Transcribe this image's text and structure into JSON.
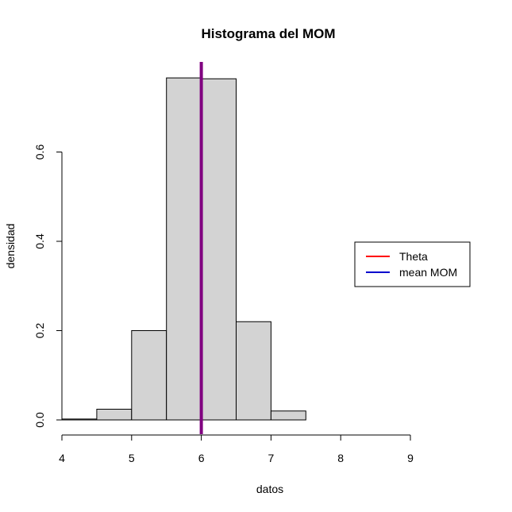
{
  "chart_data": {
    "type": "bar",
    "title": "Histograma del MOM",
    "xlabel": "datos",
    "ylabel": "densidad",
    "xlim": [
      4,
      9
    ],
    "ylim": [
      0,
      0.8
    ],
    "x_ticks": [
      4,
      5,
      6,
      7,
      8,
      9
    ],
    "y_ticks": [
      0.0,
      0.2,
      0.4,
      0.6
    ],
    "y_tick_labels": [
      "0.0",
      "0.2",
      "0.4",
      "0.6"
    ],
    "bins": [
      {
        "start": 4.0,
        "end": 4.5,
        "density": 0.002
      },
      {
        "start": 4.5,
        "end": 5.0,
        "density": 0.024
      },
      {
        "start": 5.0,
        "end": 5.5,
        "density": 0.2
      },
      {
        "start": 5.5,
        "end": 6.0,
        "density": 0.766
      },
      {
        "start": 6.0,
        "end": 6.5,
        "density": 0.764
      },
      {
        "start": 6.5,
        "end": 7.0,
        "density": 0.22
      },
      {
        "start": 7.0,
        "end": 7.5,
        "density": 0.02
      }
    ],
    "bar_fill": "#d3d3d3",
    "vertical_lines": [
      {
        "name": "Theta",
        "x": 6,
        "color": "#ff0000"
      },
      {
        "name": "mean MOM",
        "x": 6,
        "color": "#0000ff"
      }
    ],
    "overlap_color": "#800080",
    "legend": {
      "position": "right",
      "entries": [
        {
          "label": "Theta",
          "color": "#ff0000"
        },
        {
          "label": "mean MOM",
          "color": "#0000cd"
        }
      ]
    },
    "grid": false
  }
}
